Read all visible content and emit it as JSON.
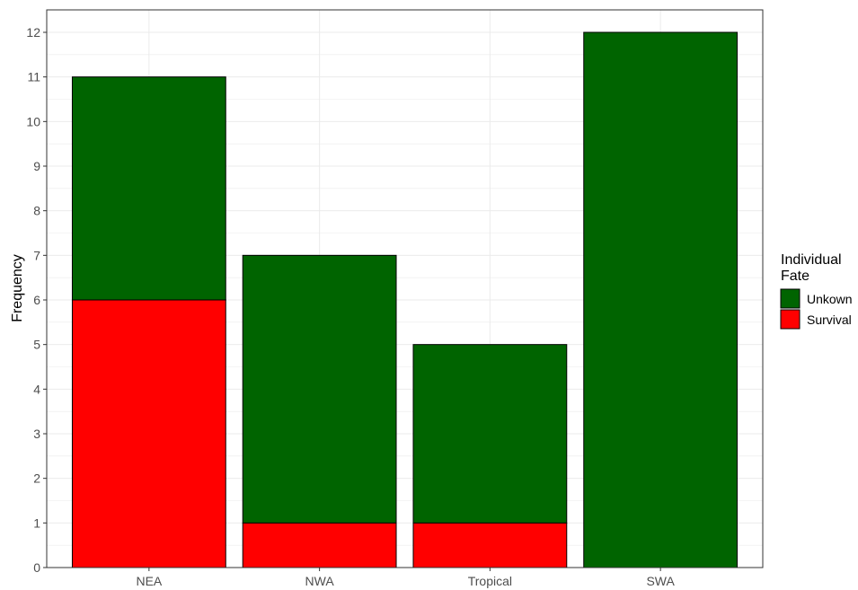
{
  "chart_data": {
    "type": "bar",
    "stacked": true,
    "categories": [
      "NEA",
      "NWA",
      "Tropical",
      "SWA"
    ],
    "series": [
      {
        "name": "Survival",
        "values": [
          6,
          1,
          1,
          0
        ],
        "color": "#ff0000"
      },
      {
        "name": "Unkown",
        "values": [
          5,
          6,
          4,
          12
        ],
        "color": "#006400"
      }
    ],
    "xlabel": "",
    "ylabel": "Frequency",
    "ylim": [
      0,
      12
    ],
    "yticks": [
      "0",
      "1",
      "2",
      "3",
      "4",
      "5",
      "6",
      "7",
      "8",
      "9",
      "10",
      "11",
      "12"
    ],
    "grid": true,
    "legend": {
      "title_lines": [
        "Individual",
        "Fate"
      ],
      "items": [
        {
          "label": "Unkown",
          "color": "#006400"
        },
        {
          "label": "Survival",
          "color": "#ff0000"
        }
      ],
      "placement": "right"
    }
  }
}
